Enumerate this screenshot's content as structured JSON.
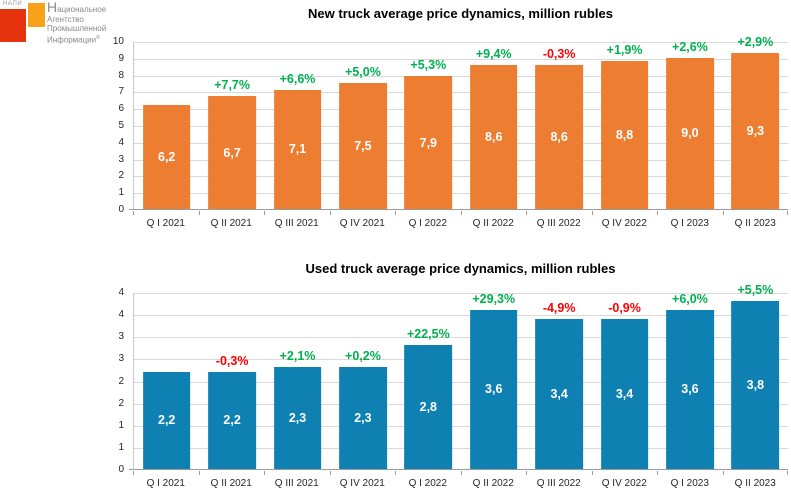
{
  "logo": {
    "acronym": "НАПИ",
    "name_line1_initial": "Н",
    "name_line1_rest": "ациональное",
    "name_line2": "Агентство",
    "name_line3": "Промышленной",
    "name_line4": "Информации",
    "registered": "®",
    "red_square_color": "#e5330f",
    "orange_square_color": "#f7a219"
  },
  "colors": {
    "positive_pct": "#00b050",
    "negative_pct": "#ff0000",
    "gridline": "#d9d9d9",
    "axis_line": "#9b9b9b",
    "bar_label_text": "#ffffff"
  },
  "chart_data": [
    {
      "type": "bar",
      "title": "New truck average price dynamics, million rubles",
      "categories": [
        "Q I 2021",
        "Q II 2021",
        "Q III 2021",
        "Q IV 2021",
        "Q I 2022",
        "Q II 2022",
        "Q III 2022",
        "Q IV 2022",
        "Q I 2023",
        "Q II 2023"
      ],
      "values": [
        6.2,
        6.7,
        7.1,
        7.5,
        7.9,
        8.6,
        8.6,
        8.8,
        9.0,
        9.3
      ],
      "value_labels": [
        "6,2",
        "6,7",
        "7,1",
        "7,5",
        "7,9",
        "8,6",
        "8,6",
        "8,8",
        "9,0",
        "9,3"
      ],
      "pct_change_labels": [
        "",
        "+7,7%",
        "+6,6%",
        "+5,0%",
        "+5,3%",
        "+9,4%",
        "-0,3%",
        "+1,9%",
        "+2,6%",
        "+2,9%"
      ],
      "bar_color": "#ed7d31",
      "xlabel": "",
      "ylabel": "",
      "ylim": [
        0,
        10
      ],
      "ytick_labels_top_to_bottom": [
        "10",
        "9",
        "8",
        "7",
        "6",
        "5",
        "4",
        "3",
        "2",
        "1",
        "0"
      ],
      "grid": true,
      "legend": "none",
      "value_label_position": "center-of-bar",
      "pct_label_position": "above-bar"
    },
    {
      "type": "bar",
      "title": "Used truck average price dynamics, million rubles",
      "categories": [
        "Q I 2021",
        "Q II 2021",
        "Q III 2021",
        "Q IV 2021",
        "Q I 2022",
        "Q II 2022",
        "Q III 2022",
        "Q IV 2022",
        "Q I 2023",
        "Q II 2023"
      ],
      "values": [
        2.2,
        2.2,
        2.3,
        2.3,
        2.8,
        3.6,
        3.4,
        3.4,
        3.6,
        3.8
      ],
      "value_labels": [
        "2,2",
        "2,2",
        "2,3",
        "2,3",
        "2,8",
        "3,6",
        "3,4",
        "3,4",
        "3,6",
        "3,8"
      ],
      "pct_change_labels": [
        "",
        "-0,3%",
        "+2,1%",
        "+0,2%",
        "+22,5%",
        "+29,3%",
        "-4,9%",
        "-0,9%",
        "+6,0%",
        "+5,5%"
      ],
      "bar_color": "#0e81b2",
      "xlabel": "",
      "ylabel": "",
      "ylim": [
        0,
        4
      ],
      "ytick_labels_top_to_bottom": [
        "4",
        "4",
        "3",
        "3",
        "2",
        "2",
        "1",
        "1",
        "0"
      ],
      "grid": true,
      "legend": "none",
      "value_label_position": "center-of-bar",
      "pct_label_position": "above-bar"
    }
  ]
}
